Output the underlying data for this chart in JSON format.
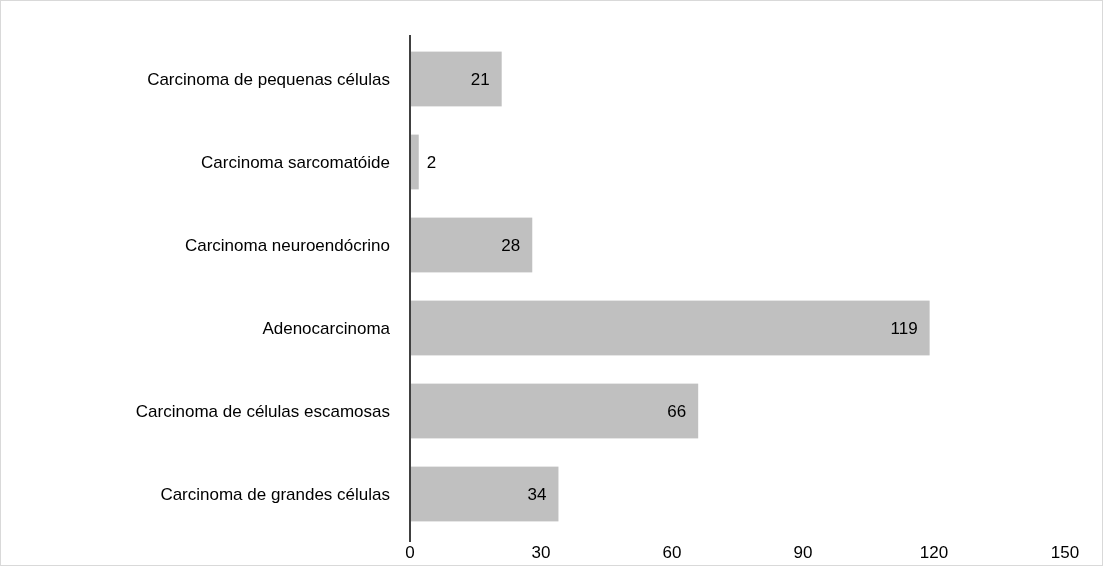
{
  "chart_data": {
    "type": "bar",
    "orientation": "horizontal",
    "categories": [
      "Carcinoma de pequenas células",
      "Carcinoma sarcomatóide",
      "Carcinoma neuroendócrino",
      "Adenocarcinoma",
      "Carcinoma de células escamosas",
      "Carcinoma de grandes células"
    ],
    "values": [
      21,
      2,
      28,
      119,
      66,
      34
    ],
    "color": "#c0c0c0",
    "xlim": [
      0,
      150
    ],
    "xticks": [
      0,
      30,
      60,
      90,
      120,
      150
    ],
    "grid": false,
    "data_labels": true
  }
}
